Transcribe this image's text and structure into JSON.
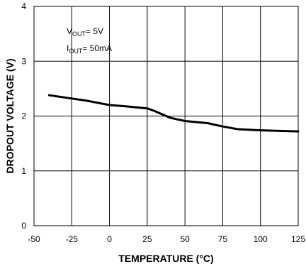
{
  "chart_data": {
    "type": "line",
    "title": "",
    "xlabel": "TEMPERATURE (°C)",
    "ylabel": "DROPOUT VOLTAGE (V)",
    "xlim": [
      -50,
      125
    ],
    "ylim": [
      0,
      4
    ],
    "x_ticks": [
      -50,
      -25,
      0,
      25,
      50,
      75,
      100,
      125
    ],
    "y_ticks": [
      0,
      1,
      2,
      3,
      4
    ],
    "x_tick_labels": [
      "-50",
      "-25",
      "0",
      "25",
      "50",
      "75",
      "100",
      "125"
    ],
    "y_tick_labels": [
      "0",
      "1",
      "2",
      "3",
      "4"
    ],
    "grid": true,
    "legend": "none",
    "line_color": "#000000",
    "annotations": [
      {
        "main": "V",
        "sub": "OUT",
        "rest": "= 5V"
      },
      {
        "main": "I",
        "sub": "OUT",
        "rest": "= 50mA"
      }
    ],
    "series": [
      {
        "x": [
          -40,
          -25,
          -15,
          0,
          10,
          25,
          30,
          40,
          50,
          65,
          75,
          85,
          100,
          125
        ],
        "values": [
          2.38,
          2.32,
          2.28,
          2.2,
          2.18,
          2.14,
          2.09,
          1.97,
          1.91,
          1.87,
          1.81,
          1.76,
          1.74,
          1.72
        ]
      }
    ]
  }
}
